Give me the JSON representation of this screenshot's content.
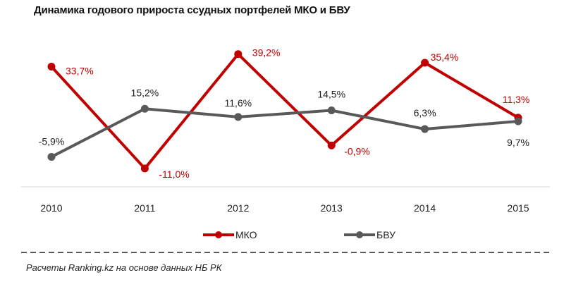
{
  "chart_data": {
    "type": "line",
    "title": "Динамика годового прироста ссудных портфелей МКО и БВУ",
    "categories": [
      "2010",
      "2011",
      "2012",
      "2013",
      "2014",
      "2015"
    ],
    "series": [
      {
        "name": "МКО",
        "values": [
          33.7,
          -11.0,
          39.2,
          -0.9,
          35.4,
          11.3
        ],
        "labels": [
          "33,7%",
          "-11,0%",
          "39,2%",
          "-0,9%",
          "35,4%",
          "11,3%"
        ],
        "color": "#C00000"
      },
      {
        "name": "БВУ",
        "values": [
          -5.9,
          15.2,
          11.6,
          14.5,
          6.3,
          9.7
        ],
        "labels": [
          "-5,9%",
          "15,2%",
          "11,6%",
          "14,5%",
          "6,3%",
          "9,7%"
        ],
        "color": "#595959"
      }
    ],
    "ylim": [
      -20,
      45
    ],
    "grid": false,
    "legend": "bottom",
    "xlabel": "",
    "ylabel": ""
  },
  "source": "Расчеты Ranking.kz на основе данных НБ РК"
}
